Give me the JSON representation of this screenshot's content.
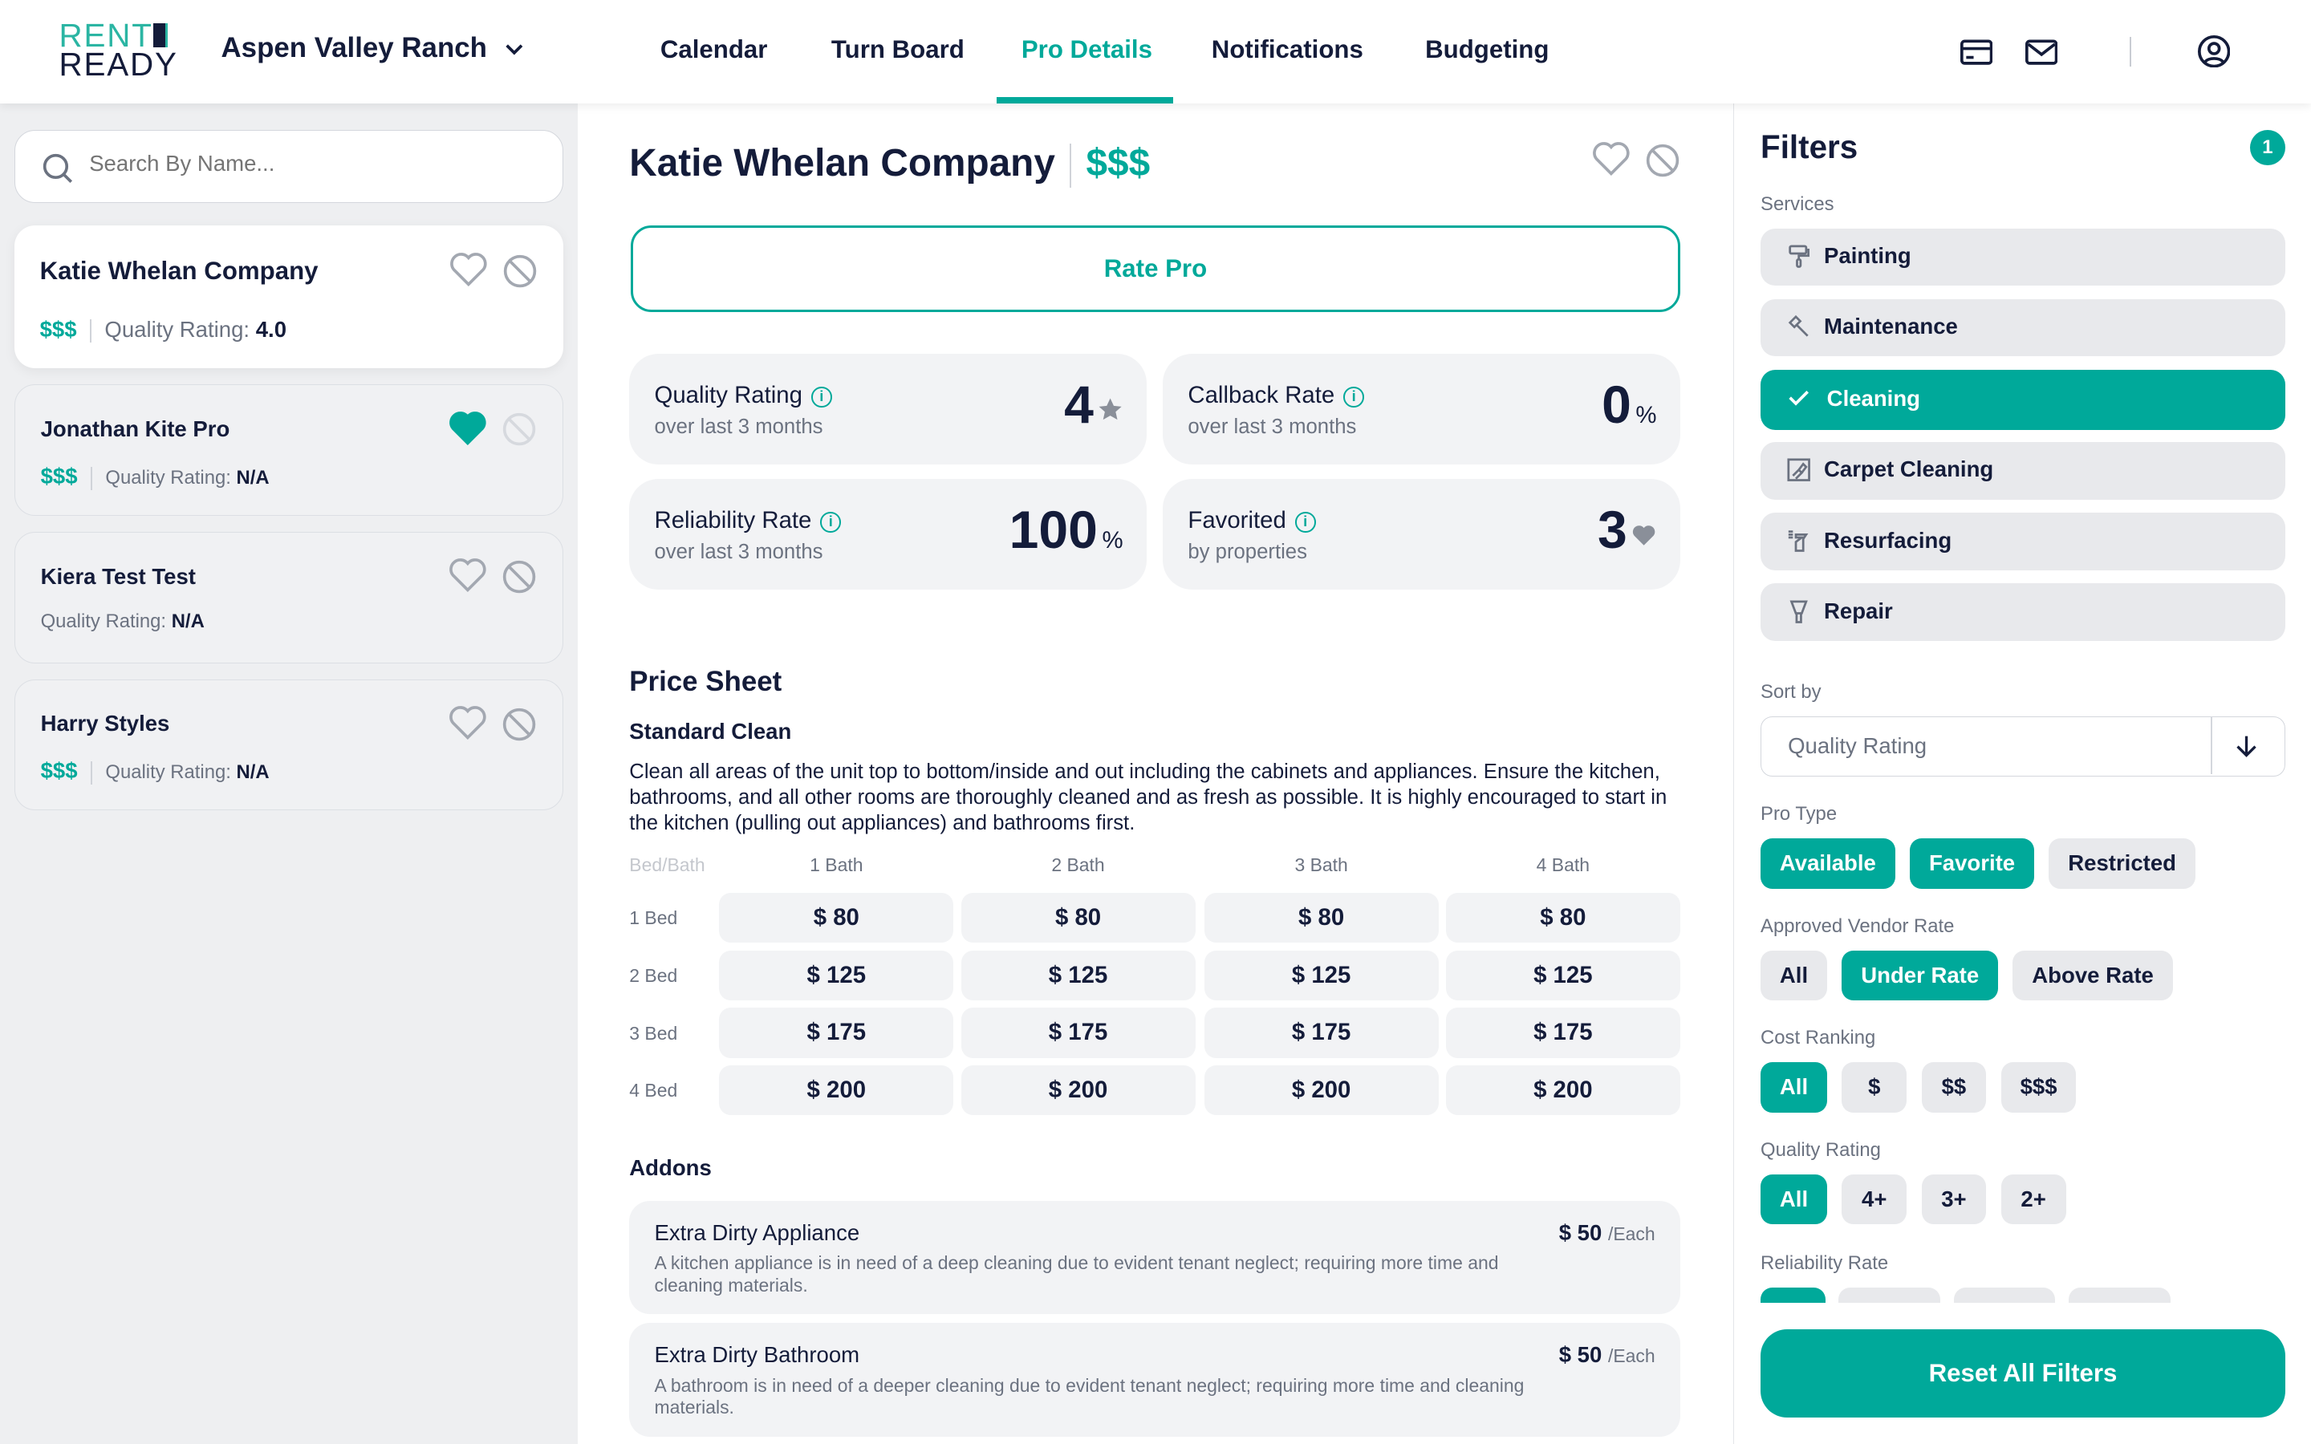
{
  "header": {
    "logo": {
      "line1": "RENT",
      "line2": "READY"
    },
    "property": "Aspen Valley Ranch",
    "nav": [
      {
        "label": "Calendar",
        "active": false
      },
      {
        "label": "Turn Board",
        "active": false
      },
      {
        "label": "Pro Details",
        "active": true
      },
      {
        "label": "Notifications",
        "active": false
      },
      {
        "label": "Budgeting",
        "active": false
      }
    ],
    "icons": [
      "credit-card-icon",
      "mail-icon",
      "user-circle-icon"
    ]
  },
  "sidebar": {
    "search_placeholder": "Search By Name...",
    "pros": [
      {
        "name": "Katie Whelan Company",
        "cost": "$$$",
        "rating_label": "Quality Rating:",
        "rating": "4.0",
        "favorited": false,
        "selected": true
      },
      {
        "name": "Jonathan Kite Pro",
        "cost": "$$$",
        "rating_label": "Quality Rating:",
        "rating": "N/A",
        "favorited": true,
        "selected": false
      },
      {
        "name": "Kiera Test Test",
        "cost": "",
        "rating_label": "Quality Rating:",
        "rating": "N/A",
        "favorited": false,
        "selected": false
      },
      {
        "name": "Harry Styles",
        "cost": "$$$",
        "rating_label": "Quality Rating:",
        "rating": "N/A",
        "favorited": false,
        "selected": false
      }
    ]
  },
  "detail": {
    "name": "Katie Whelan Company",
    "cost": "$$$",
    "rate_button": "Rate Pro",
    "stats": [
      {
        "label": "Quality Rating",
        "sub": "over last 3 months",
        "value": "4",
        "unit": "star"
      },
      {
        "label": "Callback Rate",
        "sub": "over last 3 months",
        "value": "0",
        "unit": "%"
      },
      {
        "label": "Reliability Rate",
        "sub": "over last 3 months",
        "value": "100",
        "unit": "%"
      },
      {
        "label": "Favorited",
        "sub": "by properties",
        "value": "3",
        "unit": "heart"
      }
    ],
    "price_sheet": {
      "title": "Price Sheet",
      "subtitle": "Standard Clean",
      "description": "Clean all areas of the unit top to bottom/inside and out including the cabinets and appliances. Ensure the kitchen, bathrooms, and all other rooms are thoroughly cleaned and as fresh as possible. It is highly encouraged to start in the kitchen (pulling out appliances) and bathrooms first.",
      "corner": "Bed/Bath",
      "columns": [
        "1 Bath",
        "2 Bath",
        "3 Bath",
        "4 Bath"
      ],
      "rows": [
        {
          "label": "1 Bed",
          "prices": [
            "$ 80",
            "$ 80",
            "$ 80",
            "$ 80"
          ]
        },
        {
          "label": "2 Bed",
          "prices": [
            "$ 125",
            "$ 125",
            "$ 125",
            "$ 125"
          ]
        },
        {
          "label": "3 Bed",
          "prices": [
            "$ 175",
            "$ 175",
            "$ 175",
            "$ 175"
          ]
        },
        {
          "label": "4 Bed",
          "prices": [
            "$ 200",
            "$ 200",
            "$ 200",
            "$ 200"
          ]
        }
      ]
    },
    "addons_title": "Addons",
    "addons": [
      {
        "name": "Extra Dirty Appliance",
        "description": "A kitchen appliance is in need of a deep cleaning due to evident tenant neglect; requiring more time and cleaning materials.",
        "price": "$ 50",
        "per": "/Each"
      },
      {
        "name": "Extra Dirty Bathroom",
        "description": "A bathroom is in need of a deeper cleaning due to evident tenant neglect; requiring more time and cleaning materials.",
        "price": "$ 50",
        "per": "/Each"
      }
    ]
  },
  "filters": {
    "title": "Filters",
    "count": "1",
    "services_label": "Services",
    "services": [
      {
        "label": "Painting",
        "icon": "paint-roller-icon",
        "selected": false
      },
      {
        "label": "Maintenance",
        "icon": "hammer-icon",
        "selected": false
      },
      {
        "label": "Cleaning",
        "icon": "check-icon",
        "selected": true
      },
      {
        "label": "Carpet Cleaning",
        "icon": "carpet-icon",
        "selected": false
      },
      {
        "label": "Resurfacing",
        "icon": "spray-bottle-icon",
        "selected": false
      },
      {
        "label": "Repair",
        "icon": "scraper-icon",
        "selected": false
      }
    ],
    "sort_label": "Sort by",
    "sort_value": "Quality Rating",
    "pro_type_label": "Pro Type",
    "pro_type": [
      {
        "label": "Available",
        "on": true
      },
      {
        "label": "Favorite",
        "on": true
      },
      {
        "label": "Restricted",
        "on": false
      }
    ],
    "vendor_rate_label": "Approved Vendor Rate",
    "vendor_rate": [
      {
        "label": "All",
        "on": false
      },
      {
        "label": "Under Rate",
        "on": true
      },
      {
        "label": "Above Rate",
        "on": false
      }
    ],
    "cost_label": "Cost Ranking",
    "cost": [
      {
        "label": "All",
        "on": true
      },
      {
        "label": "$",
        "on": false
      },
      {
        "label": "$$",
        "on": false
      },
      {
        "label": "$$$",
        "on": false
      }
    ],
    "quality_label": "Quality Rating",
    "quality": [
      {
        "label": "All",
        "on": true
      },
      {
        "label": "4+",
        "on": false
      },
      {
        "label": "3+",
        "on": false
      },
      {
        "label": "2+",
        "on": false
      }
    ],
    "reliability_label": "Reliability Rate",
    "reset": "Reset All Filters"
  },
  "colors": {
    "accent": "#00a99a",
    "text": "#141c3a",
    "muted": "#6b7280"
  }
}
